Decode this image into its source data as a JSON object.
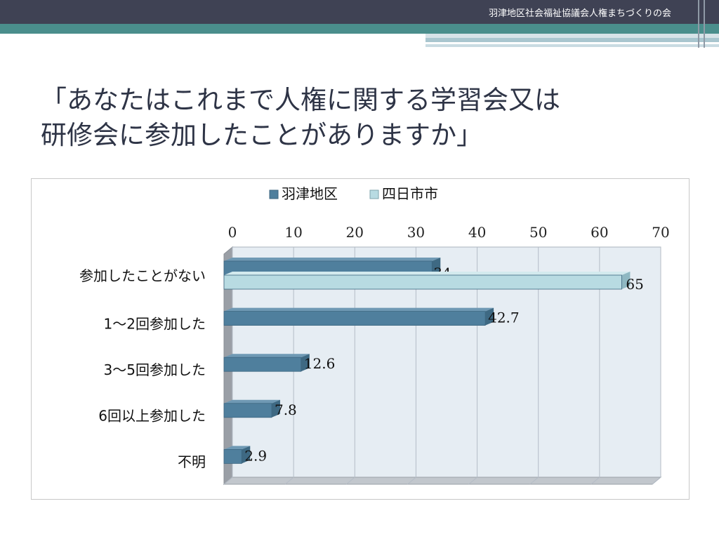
{
  "header": {
    "org_name": "羽津地区社会福祉協議会人権まちづくりの会"
  },
  "slide": {
    "title_line1": "「あなたはこれまで人権に関する学習会又は",
    "title_line2": "研修会に参加したことがありますか」"
  },
  "colors": {
    "series1": "#4f7f9d",
    "series2": "#b8dbe2",
    "header_dark": "#3f4254",
    "header_teal": "#4a8e8c"
  },
  "chart_data": {
    "type": "bar",
    "orientation": "horizontal",
    "categories": [
      "参加したことがない",
      "1～2回参加した",
      "3～5回参加した",
      "6回以上参加した",
      "不明"
    ],
    "series": [
      {
        "name": "羽津地区",
        "values": [
          34,
          42.7,
          12.6,
          7.8,
          2.9
        ]
      },
      {
        "name": "四日市市",
        "values": [
          65,
          null,
          null,
          null,
          null
        ]
      }
    ],
    "xlim": [
      0,
      70
    ],
    "x_ticks": [
      "0",
      "10",
      "20",
      "30",
      "40",
      "50",
      "60",
      "70"
    ],
    "data_labels": [
      [
        "34",
        "42.7",
        "12.6",
        "7.8",
        "2.9"
      ],
      [
        "65",
        "",
        "",
        "",
        ""
      ]
    ],
    "legend_position": "top",
    "axis_position": "top",
    "grid": true
  }
}
